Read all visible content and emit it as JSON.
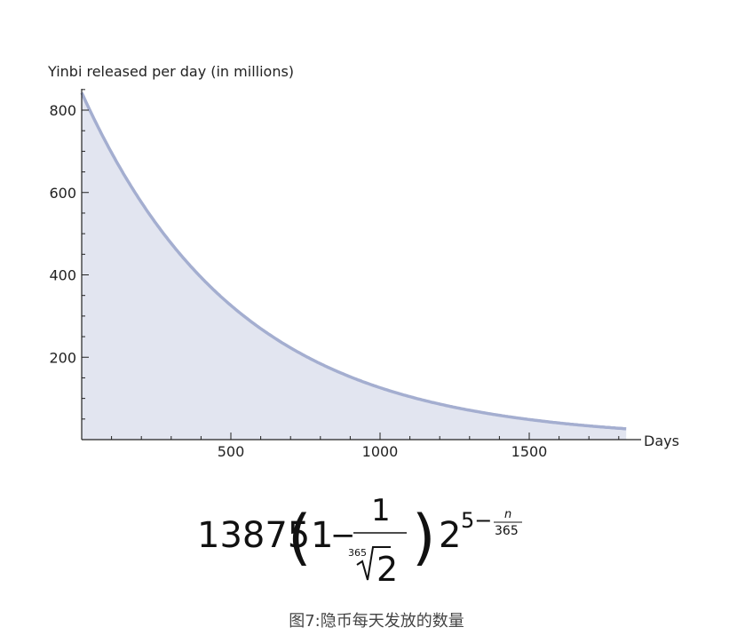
{
  "chart_data": {
    "type": "area",
    "title": "",
    "ylabel": "Yinbi released per day (in millions)",
    "xlabel": "Days",
    "xlim": [
      0,
      1825
    ],
    "ylim": [
      0,
      850
    ],
    "xticks": [
      500,
      1000,
      1500
    ],
    "yticks": [
      200,
      400,
      600,
      800
    ],
    "formula_parameters": {
      "coefficient": 13875,
      "root_index": 365,
      "root_radicand": 2,
      "base": 2,
      "exponent_constant": 5,
      "exponent_divisor": 365
    },
    "series": [
      {
        "function": "13875*(1-2^(-1/365))*2^(5-n/365)",
        "x": [
          0,
          100,
          200,
          300,
          400,
          500,
          600,
          700,
          800,
          900,
          1000,
          1100,
          1200,
          1300,
          1400,
          1500,
          1600,
          1700,
          1825
        ],
        "y": [
          844,
          699,
          578,
          479,
          396,
          328,
          271,
          224,
          186,
          154,
          127,
          105,
          87,
          72,
          60,
          49,
          41,
          34,
          26
        ],
        "color": "#a4aed0",
        "fill": "#e2e5f0"
      }
    ]
  },
  "formula": {
    "coefficient": "13875",
    "one": "1",
    "minus": "−",
    "numerator": "1",
    "root_index": "365",
    "root_radicand": "2",
    "base": "2",
    "exp_const": "5−",
    "exp_num": "n",
    "exp_den": "365"
  },
  "caption": "图7:隐币每天发放的数量"
}
